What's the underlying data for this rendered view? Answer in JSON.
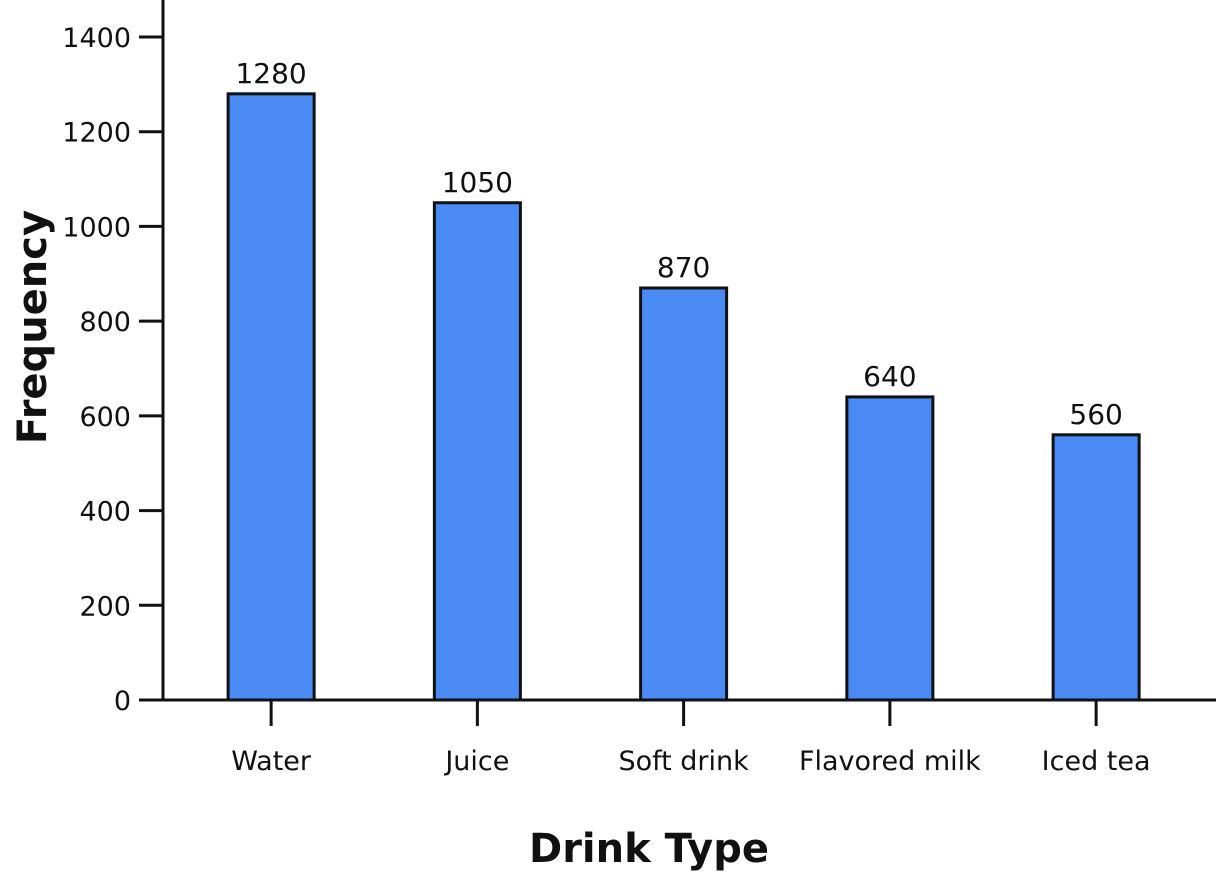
{
  "chart_data": {
    "type": "bar",
    "title": "",
    "xlabel": "Drink Type",
    "ylabel": "Frequency",
    "categories": [
      "Water",
      "Juice",
      "Soft drink",
      "Flavored milk",
      "Iced tea"
    ],
    "values": [
      1280,
      1050,
      870,
      640,
      560
    ],
    "data_labels": [
      "1280",
      "1050",
      "870",
      "640",
      "560"
    ],
    "yticks": [
      0,
      200,
      400,
      600,
      800,
      1000,
      1200,
      1400
    ],
    "ylim": [
      0,
      1400
    ],
    "grid": false,
    "legend": "none",
    "bar_color": "#4a8af4",
    "bar_edge_color": "#111111",
    "axis_color": "#111111"
  }
}
